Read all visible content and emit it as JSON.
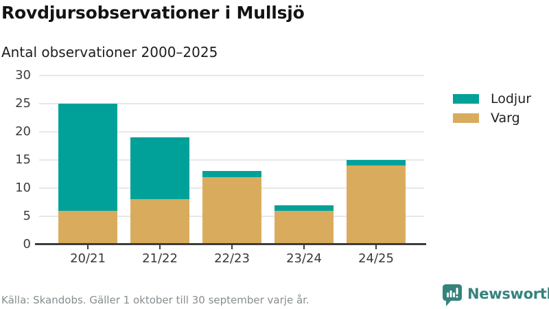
{
  "chart_data": {
    "type": "bar",
    "stacked": true,
    "title": "Rovdjursobservationer i Mullsjö",
    "subtitle": "Antal observationer 2000–2025",
    "source": "Källa: Skandobs. Gäller 1 oktober till 30 september varje år.",
    "categories": [
      "20/21",
      "21/22",
      "22/23",
      "23/24",
      "24/25"
    ],
    "series": [
      {
        "name": "Lodjur",
        "color": "#01A19A",
        "values": [
          19,
          11,
          1,
          1,
          1
        ]
      },
      {
        "name": "Varg",
        "color": "#D9AC5D",
        "values": [
          6,
          8,
          12,
          6,
          14
        ]
      }
    ],
    "stack_order_bottom_to_top": [
      "Varg",
      "Lodjur"
    ],
    "totals": [
      25,
      19,
      13,
      7,
      15
    ],
    "ylim": [
      0,
      30
    ],
    "yticks": [
      0,
      5,
      10,
      15,
      20,
      25,
      30
    ],
    "grid": true,
    "legend_position": "right",
    "gridline_color": "#E7E7E7",
    "axis_color": "#3C3C3C"
  },
  "branding": {
    "logo_text": "Newsworthy",
    "logo_color": "#35837D",
    "logo_icon": "bar-chart-speech-bubble-icon"
  }
}
